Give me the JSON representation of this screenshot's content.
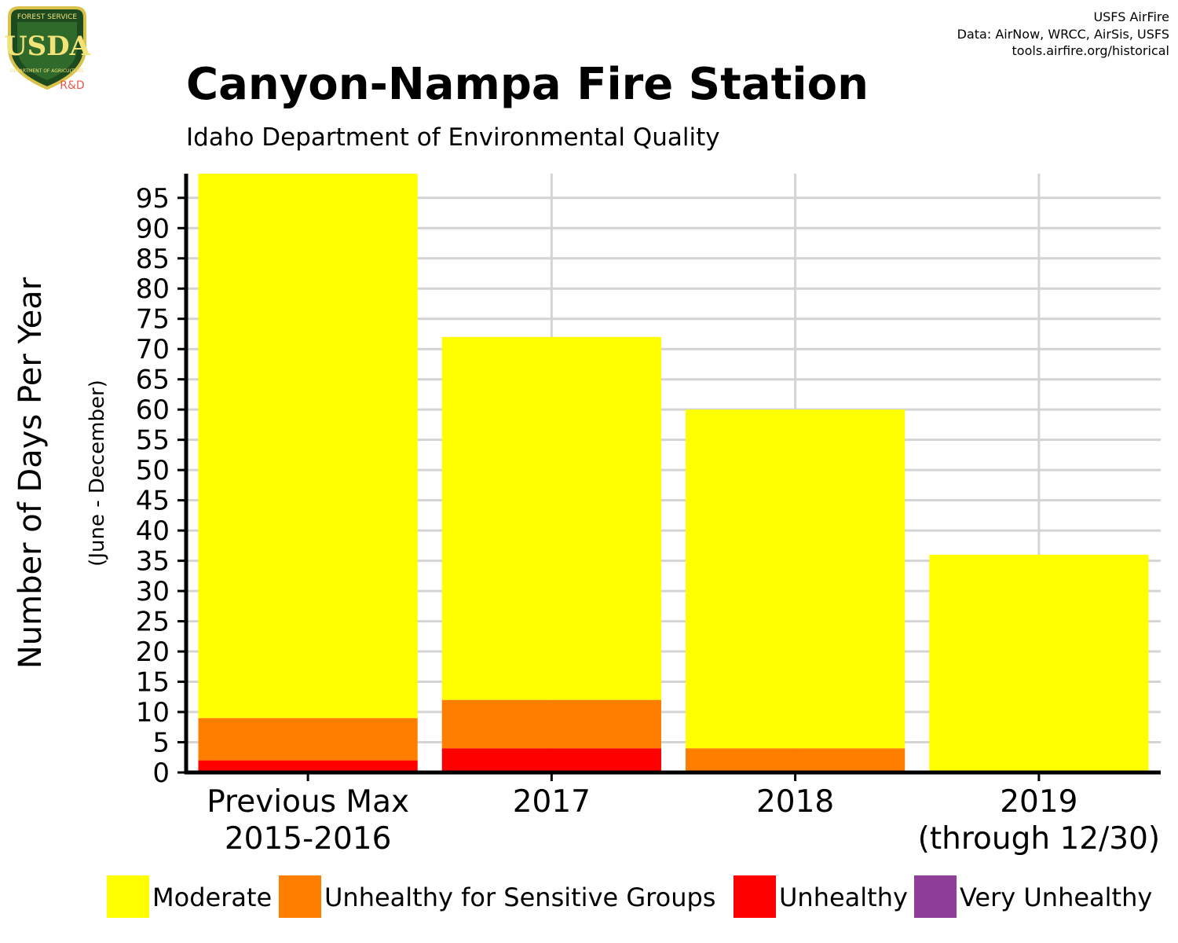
{
  "logo": {
    "top_text": "FOREST SERVICE",
    "letters": "USDA",
    "bottom_text": "DEPARTMENT OF AGRICULTURE",
    "badge": "R&D"
  },
  "credits": {
    "line1": "USFS AirFire",
    "line2": "Data: AirNow, WRCC, AirSis, USFS",
    "line3": "tools.airfire.org/historical"
  },
  "chart_data": {
    "type": "bar",
    "stacked": true,
    "title": "Canyon-Nampa Fire Station",
    "subtitle": "Idaho Department of Environmental Quality",
    "ylabel": "Number of Days Per Year",
    "ylabel_sub": "(June - December)",
    "xlabel": "",
    "ylim": [
      0,
      99
    ],
    "yticks": [
      0,
      5,
      10,
      15,
      20,
      25,
      30,
      35,
      40,
      45,
      50,
      55,
      60,
      65,
      70,
      75,
      80,
      85,
      90,
      95
    ],
    "grid": true,
    "legend_position": "bottom",
    "categories": [
      [
        "Previous Max",
        "2015-2016"
      ],
      [
        "2017"
      ],
      [
        "2018"
      ],
      [
        "2019",
        "(through 12/30)"
      ]
    ],
    "series": [
      {
        "name": "Moderate",
        "color": "#FFFF00",
        "values": [
          90,
          60,
          56,
          36
        ]
      },
      {
        "name": "Unhealthy for Sensitive Groups",
        "color": "#FF7E00",
        "values": [
          7,
          8,
          4,
          0
        ]
      },
      {
        "name": "Unhealthy",
        "color": "#FF0000",
        "values": [
          2,
          4,
          0,
          0
        ]
      },
      {
        "name": "Very Unhealthy",
        "color": "#8F3F97",
        "values": [
          0,
          0,
          0,
          0
        ]
      }
    ]
  }
}
